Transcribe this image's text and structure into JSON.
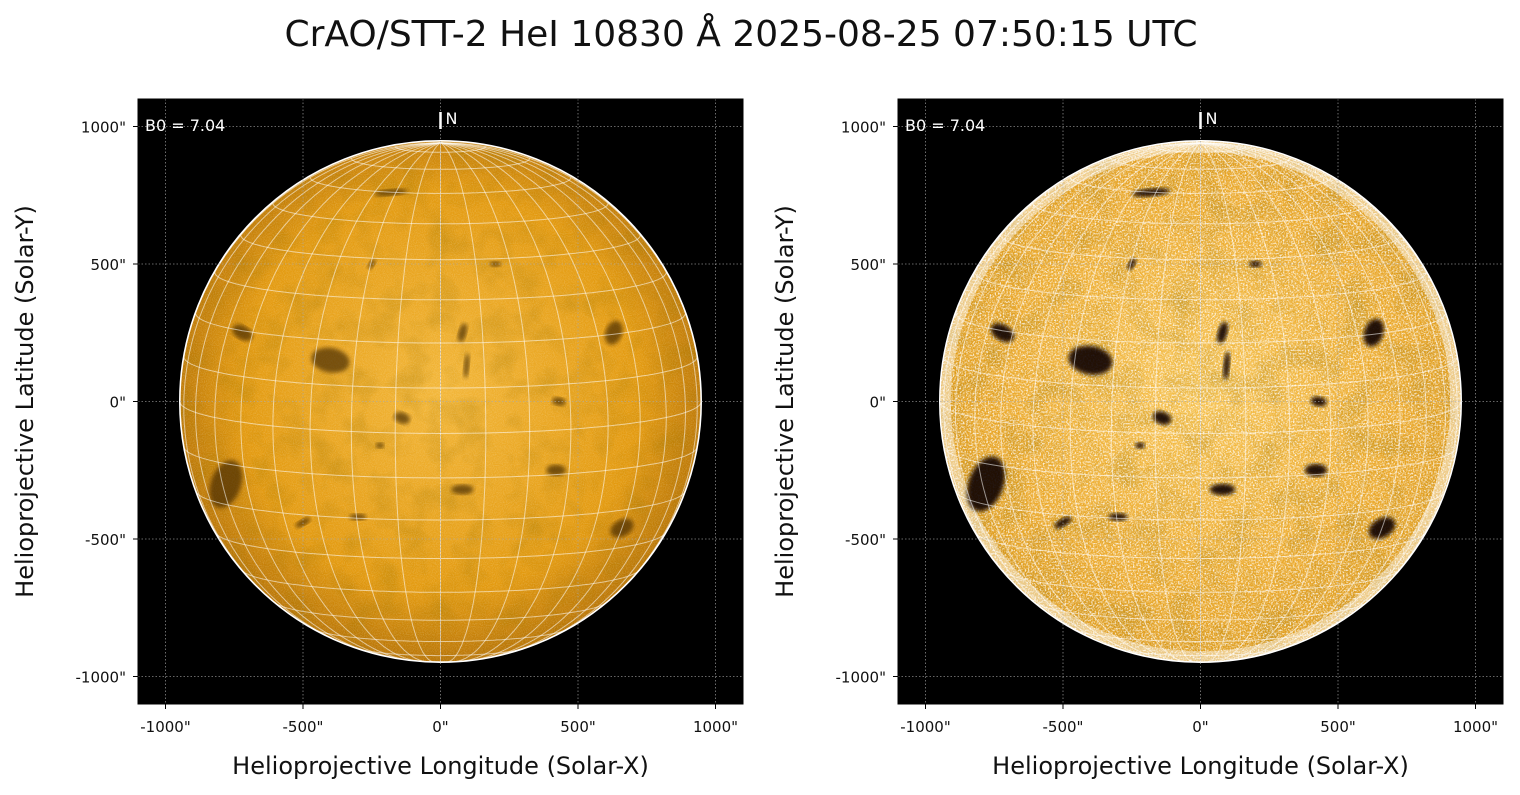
{
  "title": "CrAO/STT-2 HeI 10830 Å 2025-08-25 07:50:15 UTC",
  "colors": {
    "background": "#000000",
    "disk_base": "#e39a10",
    "disk_light": "#f3b73a",
    "disk_dark": "#b06d05",
    "limb": "#ffffff",
    "grid": "#aaaaaa"
  },
  "panels": [
    {
      "id": "left",
      "variant": "normal",
      "annotation": "B0 = 7.04",
      "north_label": "N",
      "xlabel": "Helioprojective Longitude (Solar-X)",
      "ylabel": "Helioprojective Latitude (Solar-Y)",
      "x_ticks": [
        "-1000\"",
        "-500\"",
        "0\"",
        "500\"",
        "1000\""
      ],
      "y_ticks": [
        "1000\"",
        "500\"",
        "0\"",
        "-500\"",
        "-1000\""
      ]
    },
    {
      "id": "right",
      "variant": "enhanced",
      "annotation": "B0 = 7.04",
      "north_label": "N",
      "xlabel": "Helioprojective Longitude (Solar-X)",
      "ylabel": "Helioprojective Latitude (Solar-Y)",
      "x_ticks": [
        "-1000\"",
        "-500\"",
        "0\"",
        "500\"",
        "1000\""
      ],
      "y_ticks": [
        "1000\"",
        "500\"",
        "0\"",
        "-500\"",
        "-1000\""
      ]
    }
  ],
  "axes": {
    "x_tick_values": [
      -1000,
      -500,
      0,
      500,
      1000
    ],
    "y_tick_values": [
      1000,
      500,
      0,
      -500,
      -1000
    ],
    "range": [
      -1100,
      1100
    ],
    "solar_radius": 948,
    "b0_deg": 7.04
  },
  "features": [
    {
      "x": -400,
      "y": 150,
      "rx": 70,
      "ry": 45,
      "rot": 10
    },
    {
      "x": 80,
      "y": 250,
      "rx": 15,
      "ry": 35,
      "rot": 15
    },
    {
      "x": 95,
      "y": 130,
      "rx": 10,
      "ry": 45,
      "rot": 5
    },
    {
      "x": -180,
      "y": 760,
      "rx": 60,
      "ry": 12,
      "rot": -5
    },
    {
      "x": -250,
      "y": 500,
      "rx": 10,
      "ry": 20,
      "rot": 30
    },
    {
      "x": -140,
      "y": -60,
      "rx": 30,
      "ry": 20,
      "rot": 20
    },
    {
      "x": -220,
      "y": -160,
      "rx": 15,
      "ry": 10,
      "rot": 0
    },
    {
      "x": -780,
      "y": -300,
      "rx": 55,
      "ry": 90,
      "rot": 20
    },
    {
      "x": -720,
      "y": 250,
      "rx": 40,
      "ry": 25,
      "rot": 30
    },
    {
      "x": 630,
      "y": 250,
      "rx": 30,
      "ry": 45,
      "rot": 20
    },
    {
      "x": 660,
      "y": -460,
      "rx": 45,
      "ry": 30,
      "rot": -30
    },
    {
      "x": 420,
      "y": -250,
      "rx": 35,
      "ry": 20,
      "rot": 0
    },
    {
      "x": -500,
      "y": -440,
      "rx": 30,
      "ry": 12,
      "rot": -30
    },
    {
      "x": 430,
      "y": 0,
      "rx": 25,
      "ry": 15,
      "rot": 10
    },
    {
      "x": 80,
      "y": -320,
      "rx": 40,
      "ry": 18,
      "rot": 0
    },
    {
      "x": -300,
      "y": -420,
      "rx": 30,
      "ry": 12,
      "rot": 0
    },
    {
      "x": 200,
      "y": 500,
      "rx": 20,
      "ry": 10,
      "rot": 0
    }
  ]
}
